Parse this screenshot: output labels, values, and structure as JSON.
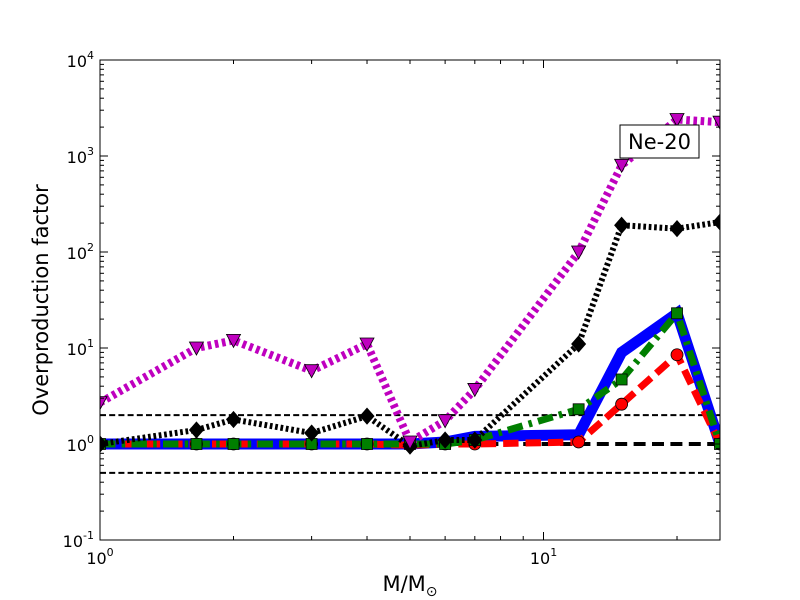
{
  "chart_data": {
    "type": "line",
    "title": "",
    "annotation": "Ne-20",
    "xlabel": "M/M",
    "xlabel_symbol": "⊙",
    "ylabel": "Overproduction factor",
    "xscale": "log",
    "yscale": "log",
    "xlim": [
      1,
      25
    ],
    "ylim": [
      0.1,
      10000
    ],
    "x_ticks": [
      {
        "value": 1,
        "base": "10",
        "exp": "0"
      },
      {
        "value": 10,
        "base": "10",
        "exp": "1"
      }
    ],
    "y_ticks": [
      {
        "value": 0.1,
        "base": "10",
        "exp": "-1"
      },
      {
        "value": 1,
        "base": "10",
        "exp": "0"
      },
      {
        "value": 10,
        "base": "10",
        "exp": "1"
      },
      {
        "value": 100,
        "base": "10",
        "exp": "2"
      },
      {
        "value": 1000,
        "base": "10",
        "exp": "3"
      },
      {
        "value": 10000,
        "base": "10",
        "exp": "4"
      }
    ],
    "reference_lines": [
      {
        "y": 2.0,
        "style": "dashed",
        "color": "#000000",
        "width": 2
      },
      {
        "y": 1.0,
        "style": "dashed",
        "color": "#000000",
        "width": 4
      },
      {
        "y": 0.5,
        "style": "dashed",
        "color": "#000000",
        "width": 2
      }
    ],
    "series": [
      {
        "color": "#0000ff",
        "dash": "solid",
        "width": 11,
        "marker": "none",
        "x": [
          1,
          1.65,
          2,
          3,
          4,
          5,
          6,
          7,
          12,
          15,
          20,
          25
        ],
        "y": [
          1.0,
          1.0,
          1.0,
          1.0,
          1.0,
          1.0,
          1.05,
          1.2,
          1.25,
          9,
          23,
          1.0
        ]
      },
      {
        "color": "#ff0000",
        "dash": "dashed",
        "width": 7,
        "marker": "circle",
        "x": [
          1,
          1.65,
          2,
          3,
          4,
          5,
          6,
          7,
          12,
          15,
          20,
          25
        ],
        "y": [
          1.0,
          1.0,
          1.0,
          1.0,
          1.0,
          0.97,
          1.0,
          1.0,
          1.05,
          2.6,
          8.5,
          1.0
        ]
      },
      {
        "color": "#007f00",
        "dash": "dashdot",
        "width": 7,
        "marker": "square",
        "x": [
          1,
          1.65,
          2,
          3,
          4,
          5,
          6,
          7,
          12,
          15,
          20,
          25
        ],
        "y": [
          1.0,
          1.0,
          1.0,
          1.0,
          1.0,
          1.0,
          1.0,
          1.1,
          2.3,
          4.7,
          23,
          1.0
        ]
      },
      {
        "color": "#000000",
        "dash": "dotted",
        "width": 6,
        "marker": "diamond",
        "x": [
          1,
          1.65,
          2,
          3,
          4,
          5,
          6,
          7,
          12,
          15,
          20,
          25
        ],
        "y": [
          1.0,
          1.4,
          1.8,
          1.3,
          1.95,
          0.95,
          1.1,
          1.1,
          11,
          190,
          175,
          205
        ]
      },
      {
        "color": "#bf00bf",
        "dash": "dotted",
        "width": 8,
        "marker": "triangle-down",
        "x": [
          1,
          1.65,
          2,
          3,
          4,
          5,
          6,
          7,
          12,
          15,
          20,
          25
        ],
        "y": [
          2.7,
          10,
          12,
          5.8,
          11,
          1.05,
          1.75,
          3.7,
          100,
          800,
          2400,
          2250
        ]
      }
    ]
  }
}
